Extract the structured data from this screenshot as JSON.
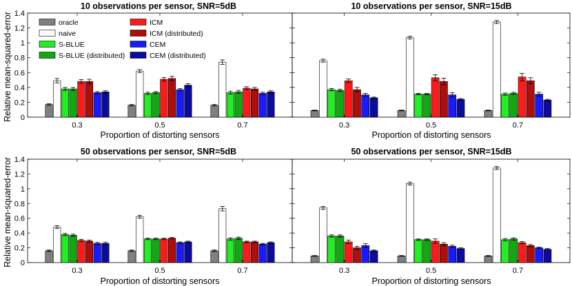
{
  "figure": {
    "ylabel": "Relative mean-squared-error",
    "xlabel": "Proportion of distorting sensors"
  },
  "legend": {
    "entries": [
      {
        "key": "oracle",
        "label": "oracle",
        "color": "#808080"
      },
      {
        "key": "naive",
        "label": "naive",
        "color": "#ffffff"
      },
      {
        "key": "sblue",
        "label": "S-BLUE",
        "color": "#22ee22"
      },
      {
        "key": "sblue_dist",
        "label": "S-BLUE (distributed)",
        "color": "#12a812"
      },
      {
        "key": "icm",
        "label": "ICM",
        "color": "#ff1a1a"
      },
      {
        "key": "icm_dist",
        "label": "ICM (distributed)",
        "color": "#b00d0d"
      },
      {
        "key": "cem",
        "label": "CEM",
        "color": "#1a1aff"
      },
      {
        "key": "cem_dist",
        "label": "CEM (distributed)",
        "color": "#0b0b9e"
      }
    ]
  },
  "chart_data": [
    {
      "type": "bar",
      "title": "10 observations per sensor, SNR=5dB",
      "xlabel": "Proportion of distorting sensors",
      "ylabel": "Relative mean-squared-error",
      "categories": [
        "0.3",
        "0.5",
        "0.7"
      ],
      "ylim": [
        0,
        1.4
      ],
      "yticks": [
        "0",
        "0.2",
        "0.4",
        "0.6",
        "0.8",
        "1",
        "1.2",
        "1.4"
      ],
      "series": [
        {
          "name": "oracle",
          "values": [
            0.17,
            0.16,
            0.16
          ],
          "errors": [
            0.01,
            0.01,
            0.01
          ]
        },
        {
          "name": "naive",
          "values": [
            0.49,
            0.62,
            0.74
          ],
          "errors": [
            0.03,
            0.02,
            0.03
          ]
        },
        {
          "name": "S-BLUE",
          "values": [
            0.38,
            0.32,
            0.33
          ],
          "errors": [
            0.02,
            0.015,
            0.02
          ]
        },
        {
          "name": "S-BLUE (distributed)",
          "values": [
            0.38,
            0.33,
            0.34
          ],
          "errors": [
            0.02,
            0.015,
            0.02
          ]
        },
        {
          "name": "ICM",
          "values": [
            0.48,
            0.51,
            0.39
          ],
          "errors": [
            0.025,
            0.025,
            0.02
          ]
        },
        {
          "name": "ICM (distributed)",
          "values": [
            0.48,
            0.52,
            0.38
          ],
          "errors": [
            0.03,
            0.03,
            0.02
          ]
        },
        {
          "name": "CEM",
          "values": [
            0.33,
            0.37,
            0.32
          ],
          "errors": [
            0.015,
            0.015,
            0.015
          ]
        },
        {
          "name": "CEM (distributed)",
          "values": [
            0.34,
            0.43,
            0.34
          ],
          "errors": [
            0.015,
            0.02,
            0.015
          ]
        }
      ]
    },
    {
      "type": "bar",
      "title": "10 observations per sensor, SNR=15dB",
      "xlabel": "Proportion of distorting sensors",
      "ylabel": "",
      "categories": [
        "0.3",
        "0.5",
        "0.7"
      ],
      "ylim": [
        0,
        1.4
      ],
      "yticks": [],
      "series": [
        {
          "name": "oracle",
          "values": [
            0.09,
            0.09,
            0.09
          ],
          "errors": [
            0.005,
            0.005,
            0.005
          ]
        },
        {
          "name": "naive",
          "values": [
            0.76,
            1.07,
            1.28
          ],
          "errors": [
            0.02,
            0.02,
            0.02
          ]
        },
        {
          "name": "S-BLUE",
          "values": [
            0.37,
            0.31,
            0.31
          ],
          "errors": [
            0.015,
            0.01,
            0.015
          ]
        },
        {
          "name": "S-BLUE (distributed)",
          "values": [
            0.36,
            0.31,
            0.32
          ],
          "errors": [
            0.015,
            0.01,
            0.015
          ]
        },
        {
          "name": "ICM",
          "values": [
            0.49,
            0.53,
            0.54
          ],
          "errors": [
            0.025,
            0.04,
            0.05
          ]
        },
        {
          "name": "ICM (distributed)",
          "values": [
            0.37,
            0.48,
            0.49
          ],
          "errors": [
            0.03,
            0.045,
            0.04
          ]
        },
        {
          "name": "CEM",
          "values": [
            0.3,
            0.3,
            0.31
          ],
          "errors": [
            0.02,
            0.03,
            0.025
          ]
        },
        {
          "name": "CEM (distributed)",
          "values": [
            0.26,
            0.24,
            0.23
          ],
          "errors": [
            0.01,
            0.01,
            0.01
          ]
        }
      ]
    },
    {
      "type": "bar",
      "title": "50 observations per sensor, SNR=5dB",
      "xlabel": "Proportion of distorting sensors",
      "ylabel": "Relative mean-squared-error",
      "categories": [
        "0.3",
        "0.5",
        "0.7"
      ],
      "ylim": [
        0,
        1.4
      ],
      "yticks": [
        "0",
        "0.2",
        "0.4",
        "0.6",
        "0.8",
        "1",
        "1.2",
        "1.4"
      ],
      "series": [
        {
          "name": "oracle",
          "values": [
            0.16,
            0.16,
            0.16
          ],
          "errors": [
            0.01,
            0.01,
            0.01
          ]
        },
        {
          "name": "naive",
          "values": [
            0.48,
            0.62,
            0.73
          ],
          "errors": [
            0.02,
            0.02,
            0.03
          ]
        },
        {
          "name": "S-BLUE",
          "values": [
            0.38,
            0.32,
            0.32
          ],
          "errors": [
            0.015,
            0.01,
            0.015
          ]
        },
        {
          "name": "S-BLUE (distributed)",
          "values": [
            0.37,
            0.32,
            0.33
          ],
          "errors": [
            0.015,
            0.01,
            0.015
          ]
        },
        {
          "name": "ICM",
          "values": [
            0.3,
            0.32,
            0.28
          ],
          "errors": [
            0.015,
            0.01,
            0.01
          ]
        },
        {
          "name": "ICM (distributed)",
          "values": [
            0.29,
            0.33,
            0.28
          ],
          "errors": [
            0.015,
            0.01,
            0.01
          ]
        },
        {
          "name": "CEM",
          "values": [
            0.26,
            0.27,
            0.25
          ],
          "errors": [
            0.015,
            0.01,
            0.01
          ]
        },
        {
          "name": "CEM (distributed)",
          "values": [
            0.26,
            0.28,
            0.27
          ],
          "errors": [
            0.015,
            0.01,
            0.01
          ]
        }
      ]
    },
    {
      "type": "bar",
      "title": "50 observations per sensor, SNR=15dB",
      "xlabel": "Proportion of distorting sensors",
      "ylabel": "",
      "categories": [
        "0.3",
        "0.5",
        "0.7"
      ],
      "ylim": [
        0,
        1.4
      ],
      "yticks": [],
      "series": [
        {
          "name": "oracle",
          "values": [
            0.09,
            0.09,
            0.09
          ],
          "errors": [
            0.005,
            0.005,
            0.005
          ]
        },
        {
          "name": "naive",
          "values": [
            0.74,
            1.07,
            1.28
          ],
          "errors": [
            0.02,
            0.02,
            0.02
          ]
        },
        {
          "name": "S-BLUE",
          "values": [
            0.36,
            0.31,
            0.31
          ],
          "errors": [
            0.015,
            0.01,
            0.015
          ]
        },
        {
          "name": "S-BLUE (distributed)",
          "values": [
            0.36,
            0.31,
            0.32
          ],
          "errors": [
            0.015,
            0.01,
            0.015
          ]
        },
        {
          "name": "ICM",
          "values": [
            0.28,
            0.29,
            0.27
          ],
          "errors": [
            0.025,
            0.03,
            0.015
          ]
        },
        {
          "name": "ICM (distributed)",
          "values": [
            0.2,
            0.25,
            0.23
          ],
          "errors": [
            0.02,
            0.02,
            0.015
          ]
        },
        {
          "name": "CEM",
          "values": [
            0.23,
            0.22,
            0.2
          ],
          "errors": [
            0.025,
            0.015,
            0.01
          ]
        },
        {
          "name": "CEM (distributed)",
          "values": [
            0.16,
            0.19,
            0.18
          ],
          "errors": [
            0.01,
            0.01,
            0.01
          ]
        }
      ]
    }
  ]
}
